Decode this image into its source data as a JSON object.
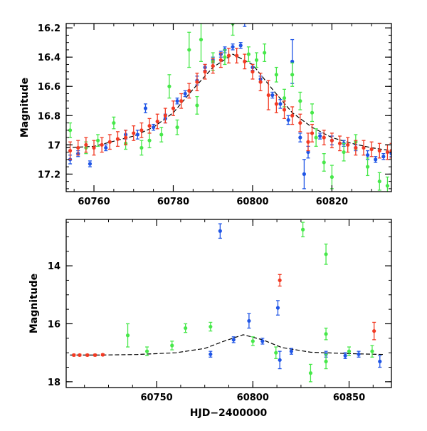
{
  "colors": {
    "blue": "#1f55e6",
    "red": "#f23a23",
    "green": "#47e84a",
    "model": "#000000",
    "axis": "#000000"
  },
  "chart_data": [
    {
      "type": "scatter",
      "xlabel": "",
      "ylabel": "Magnitude",
      "xlim": [
        60753,
        60835
      ],
      "ylim": [
        17.32,
        16.17
      ],
      "y_inverted": true,
      "xticks": [
        60760,
        60780,
        60800,
        60820
      ],
      "yticks": [
        16.2,
        16.4,
        16.6,
        16.8,
        17,
        17.2
      ],
      "ytick_labels": [
        "16.2",
        "16.4",
        "16.6",
        "16.8",
        "17",
        "17.2"
      ],
      "grid": false,
      "legend": "none",
      "model_curve": {
        "x": [
          60753,
          60760,
          60770,
          60775,
          60780,
          60785,
          60790,
          60795,
          60800,
          60805,
          60810,
          60815,
          60820,
          60825,
          60830,
          60835
        ],
        "y": [
          17.02,
          17.01,
          16.94,
          16.88,
          16.78,
          16.62,
          16.47,
          16.38,
          16.45,
          16.62,
          16.78,
          16.88,
          16.95,
          16.99,
          17.02,
          17.04
        ]
      },
      "series": [
        {
          "color": "blue",
          "points": [
            [
              60754,
              17.1,
              0.03
            ],
            [
              60756,
              17.06,
              0.02
            ],
            [
              60759,
              17.13,
              0.02
            ],
            [
              60763,
              17.02,
              0.02
            ],
            [
              60768,
              16.93,
              0.03
            ],
            [
              60771,
              16.93,
              0.03
            ],
            [
              60773,
              16.75,
              0.03
            ],
            [
              60775,
              16.88,
              0.02
            ],
            [
              60778,
              16.82,
              0.03
            ],
            [
              60781,
              16.7,
              0.02
            ],
            [
              60783,
              16.65,
              0.02
            ],
            [
              60786,
              16.56,
              0.03
            ],
            [
              60788,
              16.47,
              0.02
            ],
            [
              60790,
              16.42,
              0.02
            ],
            [
              60792,
              16.38,
              0.02
            ],
            [
              60793,
              16.35,
              0.02
            ],
            [
              60795,
              16.33,
              0.02
            ],
            [
              60797,
              16.32,
              0.02
            ],
            [
              60798,
              16.15,
              0.04
            ],
            [
              60800,
              16.47,
              0.02
            ],
            [
              60802,
              16.55,
              0.02
            ],
            [
              60805,
              16.66,
              0.02
            ],
            [
              60807,
              16.72,
              0.03
            ],
            [
              60809,
              16.83,
              0.03
            ],
            [
              60810,
              16.43,
              0.15
            ],
            [
              60812,
              16.95,
              0.03
            ],
            [
              60813,
              17.2,
              0.1
            ],
            [
              60814,
              17.05,
              0.04
            ],
            [
              60817,
              16.94,
              0.02
            ],
            [
              60820,
              16.97,
              0.03
            ],
            [
              60823,
              16.99,
              0.02
            ],
            [
              60826,
              17.02,
              0.02
            ],
            [
              60829,
              17.07,
              0.03
            ],
            [
              60831,
              17.1,
              0.02
            ],
            [
              60833,
              17.08,
              0.02
            ],
            [
              60835,
              17.06,
              0.02
            ]
          ]
        },
        {
          "color": "green",
          "points": [
            [
              60754,
              16.9,
              0.05
            ],
            [
              60758,
              17.02,
              0.04
            ],
            [
              60761,
              16.97,
              0.04
            ],
            [
              60765,
              16.85,
              0.04
            ],
            [
              60768,
              16.99,
              0.04
            ],
            [
              60772,
              17.02,
              0.05
            ],
            [
              60774,
              16.97,
              0.05
            ],
            [
              60777,
              16.93,
              0.05
            ],
            [
              60779,
              16.6,
              0.08
            ],
            [
              60781,
              16.88,
              0.05
            ],
            [
              60784,
              16.35,
              0.12
            ],
            [
              60786,
              16.73,
              0.06
            ],
            [
              60787,
              16.28,
              0.15
            ],
            [
              60790,
              16.43,
              0.06
            ],
            [
              60793,
              16.4,
              0.05
            ],
            [
              60795,
              16.17,
              0.08
            ],
            [
              60799,
              16.38,
              0.05
            ],
            [
              60801,
              16.42,
              0.05
            ],
            [
              60803,
              16.37,
              0.06
            ],
            [
              60806,
              16.52,
              0.05
            ],
            [
              60808,
              16.68,
              0.06
            ],
            [
              60810,
              16.52,
              0.08
            ],
            [
              60812,
              16.7,
              0.06
            ],
            [
              60815,
              16.78,
              0.06
            ],
            [
              60816,
              16.95,
              0.06
            ],
            [
              60818,
              17.12,
              0.06
            ],
            [
              60820,
              17.22,
              0.08
            ],
            [
              60823,
              17.05,
              0.06
            ],
            [
              60826,
              16.98,
              0.05
            ],
            [
              60829,
              17.15,
              0.06
            ],
            [
              60832,
              17.25,
              0.06
            ],
            [
              60834,
              17.28,
              0.06
            ]
          ]
        },
        {
          "color": "red",
          "points": [
            [
              60754,
              17.04,
              0.06
            ],
            [
              60756,
              17.02,
              0.05
            ],
            [
              60758,
              17.0,
              0.05
            ],
            [
              60760,
              17.02,
              0.05
            ],
            [
              60762,
              17.0,
              0.05
            ],
            [
              60764,
              16.98,
              0.05
            ],
            [
              60766,
              16.96,
              0.05
            ],
            [
              60768,
              16.95,
              0.05
            ],
            [
              60770,
              16.92,
              0.05
            ],
            [
              60772,
              16.9,
              0.05
            ],
            [
              60774,
              16.87,
              0.05
            ],
            [
              60776,
              16.84,
              0.05
            ],
            [
              60778,
              16.8,
              0.05
            ],
            [
              60780,
              16.75,
              0.05
            ],
            [
              60782,
              16.7,
              0.05
            ],
            [
              60784,
              16.63,
              0.05
            ],
            [
              60786,
              16.57,
              0.06
            ],
            [
              60788,
              16.5,
              0.05
            ],
            [
              60790,
              16.46,
              0.05
            ],
            [
              60792,
              16.42,
              0.05
            ],
            [
              60794,
              16.39,
              0.05
            ],
            [
              60796,
              16.39,
              0.05
            ],
            [
              60798,
              16.43,
              0.05
            ],
            [
              60800,
              16.5,
              0.05
            ],
            [
              60802,
              16.57,
              0.06
            ],
            [
              60804,
              16.66,
              0.1
            ],
            [
              60806,
              16.72,
              0.06
            ],
            [
              60808,
              16.76,
              0.06
            ],
            [
              60810,
              16.8,
              0.06
            ],
            [
              60812,
              16.85,
              0.06
            ],
            [
              60814,
              16.98,
              0.06
            ],
            [
              60815,
              16.92,
              0.06
            ],
            [
              60818,
              16.95,
              0.05
            ],
            [
              60820,
              16.97,
              0.05
            ],
            [
              60822,
              16.99,
              0.05
            ],
            [
              60824,
              17.0,
              0.05
            ],
            [
              60826,
              17.02,
              0.05
            ],
            [
              60828,
              17.02,
              0.05
            ],
            [
              60830,
              17.03,
              0.05
            ],
            [
              60832,
              17.04,
              0.05
            ],
            [
              60834,
              17.05,
              0.05
            ],
            [
              60835,
              17.04,
              0.05
            ]
          ]
        }
      ]
    },
    {
      "type": "scatter",
      "xlabel": "HJD−2400000",
      "ylabel": "Magnitude",
      "xlim": [
        60703,
        60872
      ],
      "ylim": [
        18.2,
        12.4
      ],
      "y_inverted": true,
      "xticks": [
        60750,
        60800,
        60850
      ],
      "yticks": [
        14,
        16,
        18
      ],
      "ytick_labels": [
        "14",
        "16",
        "18"
      ],
      "grid": false,
      "legend": "none",
      "model_curve": {
        "x": [
          60705,
          60720,
          60740,
          60760,
          60775,
          60785,
          60795,
          60805,
          60815,
          60830,
          60850,
          60868
        ],
        "y": [
          17.08,
          17.08,
          17.06,
          17.0,
          16.85,
          16.6,
          16.38,
          16.55,
          16.82,
          16.98,
          17.03,
          17.06
        ]
      },
      "series": [
        {
          "color": "blue",
          "points": [
            [
              60783,
              12.8,
              0.25
            ],
            [
              60798,
              15.9,
              0.25
            ],
            [
              60813,
              15.45,
              0.25
            ],
            [
              60814,
              17.25,
              0.3
            ],
            [
              60778,
              17.05,
              0.1
            ],
            [
              60790,
              16.55,
              0.1
            ],
            [
              60805,
              16.6,
              0.1
            ],
            [
              60820,
              16.95,
              0.1
            ],
            [
              60838,
              17.05,
              0.1
            ],
            [
              60848,
              17.1,
              0.1
            ],
            [
              60855,
              17.05,
              0.1
            ],
            [
              60866,
              17.3,
              0.2
            ]
          ]
        },
        {
          "color": "green",
          "points": [
            [
              60826,
              12.75,
              0.25
            ],
            [
              60838,
              13.6,
              0.35
            ],
            [
              60735,
              16.4,
              0.4
            ],
            [
              60765,
              16.15,
              0.15
            ],
            [
              60778,
              16.1,
              0.15
            ],
            [
              60800,
              16.6,
              0.15
            ],
            [
              60838,
              16.35,
              0.2
            ],
            [
              60830,
              17.7,
              0.3
            ],
            [
              60838,
              17.3,
              0.25
            ],
            [
              60745,
              16.95,
              0.15
            ],
            [
              60758,
              16.75,
              0.15
            ],
            [
              60812,
              17.0,
              0.2
            ],
            [
              60850,
              16.95,
              0.15
            ],
            [
              60862,
              16.95,
              0.2
            ]
          ]
        },
        {
          "color": "red",
          "points": [
            [
              60814,
              14.5,
              0.2
            ],
            [
              60863,
              16.25,
              0.3
            ],
            [
              60707,
              17.08,
              0.03
            ],
            [
              60710,
              17.08,
              0.03
            ],
            [
              60714,
              17.08,
              0.03
            ],
            [
              60718,
              17.08,
              0.03
            ],
            [
              60722,
              17.07,
              0.03
            ]
          ]
        }
      ]
    }
  ]
}
